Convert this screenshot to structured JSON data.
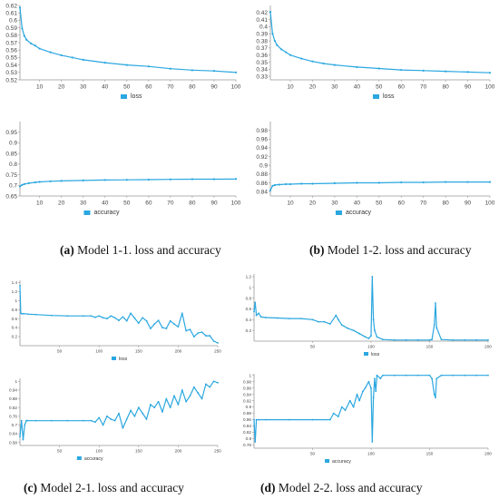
{
  "colors": {
    "series": "#2aa7e0",
    "axis": "#999999",
    "text": "#444444"
  },
  "captions": [
    {
      "tag": "(a)",
      "text": " Model 1-1. loss and accuracy"
    },
    {
      "tag": "(b)",
      "text": " Model 1-2. loss and accuracy"
    },
    {
      "tag": "(c)",
      "text": " Model 2-1. loss and accuracy"
    },
    {
      "tag": "(d)",
      "text": " Model 2-2. loss and accuracy"
    }
  ],
  "chart_data": [
    {
      "type": "line",
      "name": "a-loss",
      "legend": "loss",
      "legend_placement": "bottom-center",
      "xlim": [
        1,
        100
      ],
      "ylim": [
        0.52,
        0.62
      ],
      "xticks": [
        10,
        20,
        30,
        40,
        50,
        60,
        70,
        80,
        90,
        100
      ],
      "yticks": [
        0.52,
        0.53,
        0.54,
        0.55,
        0.56,
        0.57,
        0.58,
        0.59,
        0.6,
        0.61,
        0.62
      ],
      "ytick_labels": [
        "0.52",
        "0.53",
        "0.54",
        "0.55",
        "0.56",
        "0.57",
        "0.58",
        "0.59",
        "0.6",
        "0.61",
        "0.62"
      ],
      "x": [
        1,
        2,
        3,
        4,
        6,
        8,
        10,
        15,
        20,
        25,
        30,
        40,
        50,
        60,
        70,
        80,
        90,
        100
      ],
      "y": [
        0.617,
        0.589,
        0.579,
        0.574,
        0.569,
        0.566,
        0.562,
        0.557,
        0.553,
        0.55,
        0.547,
        0.543,
        0.54,
        0.538,
        0.535,
        0.533,
        0.532,
        0.53
      ]
    },
    {
      "type": "line",
      "name": "a-acc",
      "legend": "accuracy",
      "legend_placement": "bottom-left",
      "xlim": [
        1,
        100
      ],
      "ylim": [
        0.65,
        1.0
      ],
      "xticks": [
        10,
        20,
        30,
        40,
        50,
        60,
        70,
        80,
        90,
        100
      ],
      "yticks": [
        0.65,
        0.7,
        0.75,
        0.8,
        0.85,
        0.9,
        0.95
      ],
      "ytick_labels": [
        "0.65",
        "0.7",
        "0.75",
        "0.8",
        "0.85",
        "0.9",
        "0.95"
      ],
      "x": [
        1,
        2,
        3,
        5,
        8,
        10,
        15,
        20,
        30,
        40,
        50,
        60,
        70,
        80,
        90,
        100
      ],
      "y": [
        0.695,
        0.702,
        0.706,
        0.71,
        0.714,
        0.716,
        0.719,
        0.721,
        0.723,
        0.725,
        0.726,
        0.727,
        0.728,
        0.729,
        0.729,
        0.73
      ]
    },
    {
      "type": "line",
      "name": "b-loss",
      "legend": "loss",
      "legend_placement": "bottom-center",
      "xlim": [
        1,
        100
      ],
      "ylim": [
        0.325,
        0.43
      ],
      "xticks": [
        10,
        20,
        30,
        40,
        50,
        60,
        70,
        80,
        90,
        100
      ],
      "yticks": [
        0.33,
        0.34,
        0.35,
        0.36,
        0.37,
        0.38,
        0.39,
        0.4,
        0.41,
        0.42
      ],
      "ytick_labels": [
        "0.33",
        "0.34",
        "0.35",
        "0.36",
        "0.37",
        "0.38",
        "0.39",
        "0.4",
        "0.41",
        "0.42"
      ],
      "x": [
        1,
        2,
        3,
        4,
        6,
        8,
        10,
        15,
        20,
        25,
        30,
        40,
        50,
        60,
        70,
        80,
        90,
        100
      ],
      "y": [
        0.421,
        0.39,
        0.38,
        0.374,
        0.368,
        0.364,
        0.36,
        0.355,
        0.351,
        0.348,
        0.346,
        0.343,
        0.341,
        0.339,
        0.338,
        0.337,
        0.336,
        0.335
      ]
    },
    {
      "type": "line",
      "name": "b-acc",
      "legend": "accuracy",
      "legend_placement": "bottom-left",
      "xlim": [
        1,
        100
      ],
      "ylim": [
        0.83,
        1.0
      ],
      "xticks": [
        10,
        20,
        30,
        40,
        50,
        60,
        70,
        80,
        90,
        100
      ],
      "yticks": [
        0.84,
        0.86,
        0.88,
        0.9,
        0.92,
        0.94,
        0.96,
        0.98
      ],
      "ytick_labels": [
        "0.84",
        "0.86",
        "0.88",
        "0.9",
        "0.92",
        "0.94",
        "0.96",
        "0.98"
      ],
      "x": [
        1,
        2,
        3,
        5,
        8,
        10,
        15,
        20,
        30,
        40,
        50,
        60,
        70,
        80,
        90,
        100
      ],
      "y": [
        0.843,
        0.853,
        0.855,
        0.856,
        0.857,
        0.857,
        0.858,
        0.858,
        0.859,
        0.86,
        0.86,
        0.861,
        0.861,
        0.862,
        0.862,
        0.862
      ]
    },
    {
      "type": "line",
      "name": "c-loss",
      "legend": "loss",
      "legend_placement": "bottom-center",
      "xlim": [
        0,
        250
      ],
      "ylim": [
        0,
        1.45
      ],
      "xticks": [
        50,
        100,
        150,
        200,
        250
      ],
      "yticks": [
        0.2,
        0.4,
        0.6,
        0.8,
        1,
        1.2,
        1.4
      ],
      "ytick_labels": [
        "0.2",
        "0.4",
        "0.6",
        "0.8",
        "1",
        "1.2",
        "1.4"
      ],
      "x": [
        0,
        1,
        2,
        3,
        5,
        10,
        20,
        40,
        60,
        80,
        90,
        95,
        100,
        105,
        110,
        115,
        120,
        125,
        130,
        135,
        140,
        145,
        150,
        155,
        160,
        165,
        170,
        175,
        180,
        185,
        190,
        195,
        200,
        205,
        210,
        215,
        220,
        225,
        230,
        235,
        240,
        245,
        250
      ],
      "y": [
        1.33,
        0.72,
        0.71,
        0.71,
        0.71,
        0.7,
        0.69,
        0.67,
        0.66,
        0.66,
        0.66,
        0.63,
        0.66,
        0.62,
        0.6,
        0.66,
        0.62,
        0.56,
        0.64,
        0.55,
        0.72,
        0.61,
        0.5,
        0.62,
        0.55,
        0.38,
        0.48,
        0.56,
        0.4,
        0.38,
        0.55,
        0.48,
        0.42,
        0.72,
        0.33,
        0.36,
        0.2,
        0.28,
        0.3,
        0.22,
        0.22,
        0.1,
        0.06
      ]
    },
    {
      "type": "line",
      "name": "c-acc",
      "legend": "accuracy",
      "legend_placement": "bottom-left",
      "xlim": [
        0,
        250
      ],
      "ylim": [
        0.56,
        1.02
      ],
      "xticks": [
        50,
        100,
        150,
        200,
        250
      ],
      "yticks": [
        0.58,
        0.64,
        0.7,
        0.76,
        0.82,
        0.88,
        0.94,
        1
      ],
      "ytick_labels": [
        "0.58",
        "0.64",
        "0.7",
        "0.76",
        "0.82",
        "0.88",
        "0.94",
        "1"
      ],
      "x": [
        0,
        2,
        4,
        6,
        8,
        10,
        20,
        40,
        60,
        80,
        90,
        95,
        100,
        105,
        110,
        115,
        120,
        125,
        130,
        135,
        140,
        145,
        150,
        155,
        160,
        165,
        170,
        175,
        180,
        185,
        190,
        195,
        200,
        205,
        210,
        215,
        220,
        225,
        230,
        235,
        240,
        245,
        250
      ],
      "y": [
        0.62,
        0.73,
        0.6,
        0.7,
        0.73,
        0.73,
        0.73,
        0.73,
        0.73,
        0.73,
        0.73,
        0.72,
        0.75,
        0.7,
        0.76,
        0.74,
        0.73,
        0.78,
        0.68,
        0.74,
        0.8,
        0.76,
        0.82,
        0.78,
        0.74,
        0.84,
        0.82,
        0.86,
        0.79,
        0.88,
        0.82,
        0.9,
        0.84,
        0.94,
        0.86,
        0.9,
        0.96,
        0.92,
        0.88,
        0.98,
        0.96,
        1.0,
        0.99
      ]
    },
    {
      "type": "line",
      "name": "d-loss",
      "legend": "loss",
      "legend_placement": "bottom-center",
      "xlim": [
        0,
        200
      ],
      "ylim": [
        0,
        1.25
      ],
      "xticks": [
        50,
        100,
        150,
        200
      ],
      "yticks": [
        0.2,
        0.4,
        0.6,
        0.8,
        1,
        1.2
      ],
      "ytick_labels": [
        "0.2",
        "0.4",
        "0.6",
        "0.8",
        "1",
        "1.2"
      ],
      "x": [
        0,
        1,
        2,
        4,
        6,
        10,
        20,
        30,
        40,
        50,
        55,
        60,
        65,
        70,
        72,
        75,
        80,
        85,
        90,
        95,
        98,
        100,
        101,
        102,
        103,
        105,
        110,
        120,
        130,
        140,
        150,
        152,
        154,
        155,
        156,
        160,
        170,
        180,
        190,
        200
      ],
      "y": [
        0.55,
        0.72,
        0.48,
        0.52,
        0.45,
        0.44,
        0.43,
        0.42,
        0.42,
        0.4,
        0.36,
        0.36,
        0.32,
        0.48,
        0.4,
        0.3,
        0.24,
        0.2,
        0.14,
        0.08,
        0.05,
        0.1,
        1.2,
        0.4,
        0.2,
        0.08,
        0.03,
        0.02,
        0.02,
        0.02,
        0.02,
        0.03,
        0.3,
        0.71,
        0.25,
        0.03,
        0.02,
        0.02,
        0.02,
        0.02
      ]
    },
    {
      "type": "line",
      "name": "d-acc",
      "legend": "accuracy",
      "legend_placement": "bottom-left",
      "xlim": [
        0,
        200
      ],
      "ylim": [
        0.77,
        1.005
      ],
      "xticks": [
        50,
        100,
        150,
        200
      ],
      "yticks": [
        0.78,
        0.8,
        0.82,
        0.84,
        0.86,
        0.88,
        0.9,
        0.92,
        0.94,
        0.96,
        0.98,
        1
      ],
      "ytick_labels": [
        "0.78",
        "0.8",
        "0.82",
        "0.84",
        "0.86",
        "0.88",
        "0.9",
        "0.92",
        "0.94",
        "0.96",
        "0.98",
        "1"
      ],
      "x": [
        0,
        1,
        2,
        4,
        10,
        30,
        50,
        65,
        68,
        72,
        75,
        78,
        82,
        85,
        88,
        90,
        93,
        95,
        98,
        100,
        101,
        102,
        103,
        104,
        105,
        108,
        110,
        120,
        130,
        140,
        150,
        152,
        154,
        155,
        156,
        160,
        170,
        180,
        190,
        200
      ],
      "y": [
        0.86,
        0.79,
        0.86,
        0.86,
        0.86,
        0.86,
        0.86,
        0.86,
        0.88,
        0.87,
        0.9,
        0.89,
        0.92,
        0.9,
        0.94,
        0.92,
        0.95,
        0.96,
        0.98,
        0.96,
        0.79,
        0.93,
        0.99,
        0.95,
        1.0,
        0.99,
        1.0,
        1.0,
        1.0,
        1.0,
        1.0,
        0.99,
        0.94,
        0.93,
        0.99,
        1.0,
        1.0,
        1.0,
        1.0,
        1.0
      ]
    }
  ]
}
